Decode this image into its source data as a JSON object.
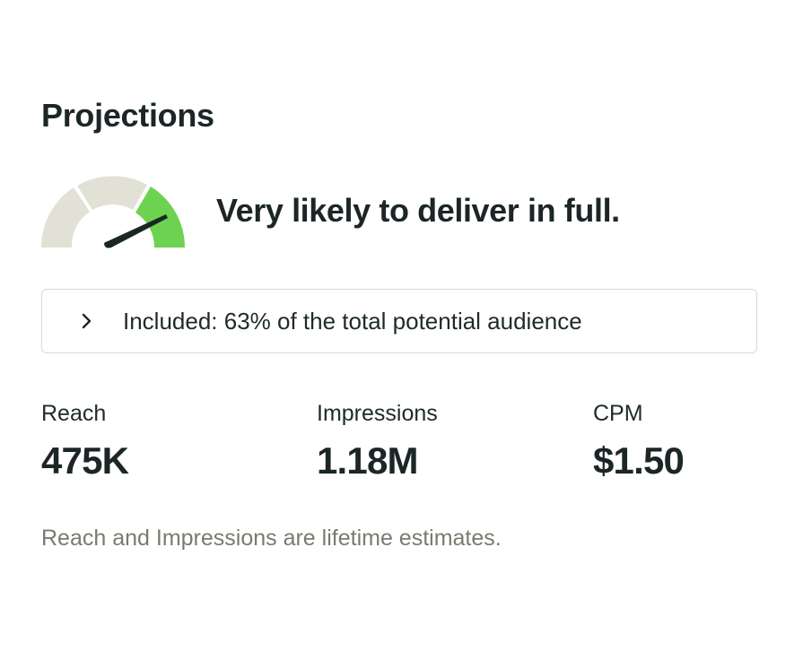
{
  "header": {
    "title": "Projections"
  },
  "delivery": {
    "gauge_icon": "speedometer-gauge-icon",
    "likelihood_text": "Very likely to deliver in full.",
    "gauge_level": "high",
    "colors": {
      "track": "#e2e1d6",
      "active": "#6dd24f",
      "needle": "#1c2626"
    }
  },
  "audience": {
    "expand_icon": "chevron-right-icon",
    "text": "Included: 63% of the total potential audience"
  },
  "metrics": [
    {
      "label": "Reach",
      "value": "475K"
    },
    {
      "label": "Impressions",
      "value": "1.18M"
    },
    {
      "label": "CPM",
      "value": "$1.50"
    }
  ],
  "footnote": "Reach and Impressions are lifetime estimates."
}
